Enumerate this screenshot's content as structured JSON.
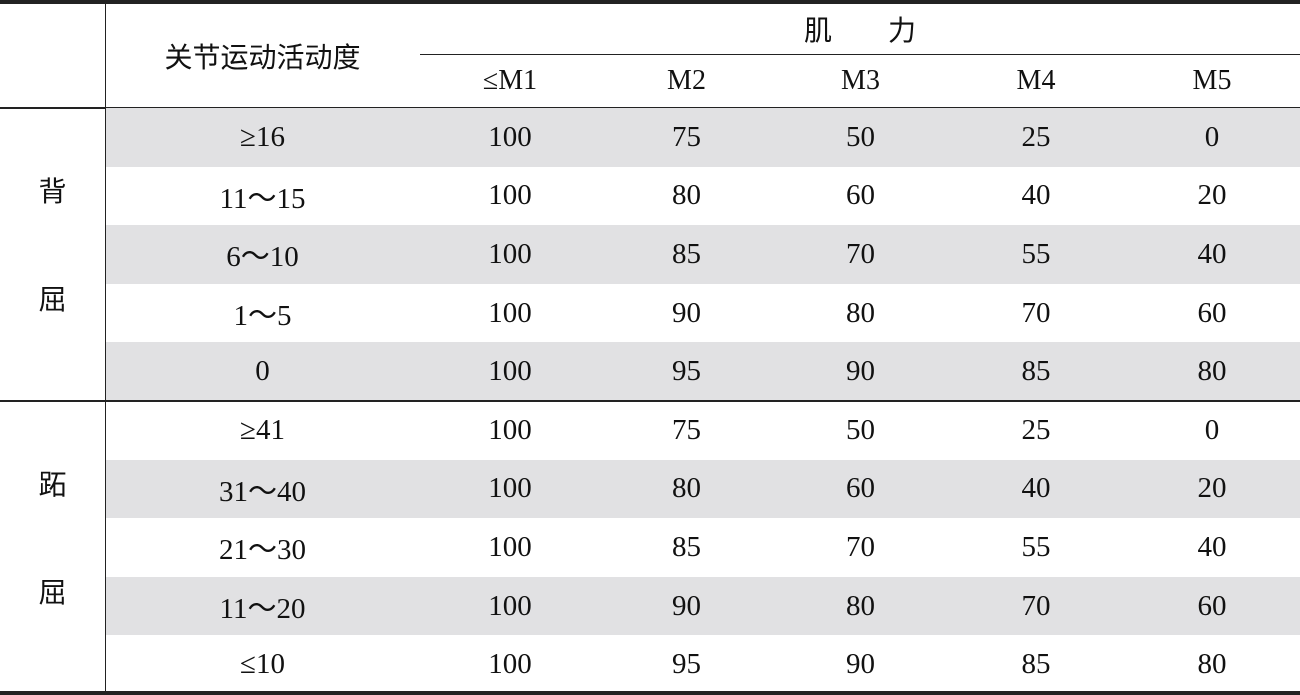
{
  "colors": {
    "stripe": "#e1e1e3",
    "rule": "#222222"
  },
  "header": {
    "rom_label": "关节运动活动度",
    "strength_label": "肌　　力",
    "columns": [
      "≤M1",
      "M2",
      "M3",
      "M4",
      "M5"
    ]
  },
  "groups": [
    {
      "label_chars": [
        "背",
        "屈"
      ],
      "striped_first": true,
      "rows": [
        {
          "range": "≥16",
          "values": [
            "100",
            "75",
            "50",
            "25",
            "0"
          ]
        },
        {
          "range": "11～15",
          "values": [
            "100",
            "80",
            "60",
            "40",
            "20"
          ]
        },
        {
          "range": "6～10",
          "values": [
            "100",
            "85",
            "70",
            "55",
            "40"
          ]
        },
        {
          "range": "1～5",
          "values": [
            "100",
            "90",
            "80",
            "70",
            "60"
          ]
        },
        {
          "range": "0",
          "values": [
            "100",
            "95",
            "90",
            "85",
            "80"
          ]
        }
      ]
    },
    {
      "label_chars": [
        "跖",
        "屈"
      ],
      "striped_first": false,
      "rows": [
        {
          "range": "≥41",
          "values": [
            "100",
            "75",
            "50",
            "25",
            "0"
          ]
        },
        {
          "range": "31～40",
          "values": [
            "100",
            "80",
            "60",
            "40",
            "20"
          ]
        },
        {
          "range": "21～30",
          "values": [
            "100",
            "85",
            "70",
            "55",
            "40"
          ]
        },
        {
          "range": "11～20",
          "values": [
            "100",
            "90",
            "80",
            "70",
            "60"
          ]
        },
        {
          "range": "≤10",
          "values": [
            "100",
            "95",
            "90",
            "85",
            "80"
          ]
        }
      ]
    }
  ]
}
